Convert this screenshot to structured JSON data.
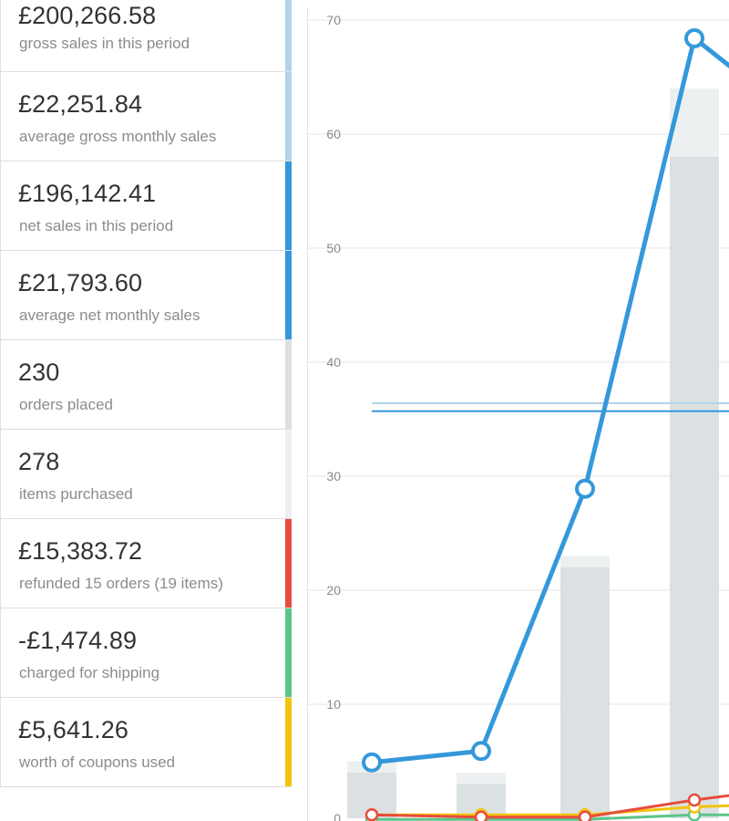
{
  "legend": {
    "items": [
      {
        "amount": "£200,266.58",
        "label": "gross sales in this period",
        "color": "#b1d4ea"
      },
      {
        "amount": "£22,251.84",
        "label": "average gross monthly sales",
        "color": "#b1d4ea"
      },
      {
        "amount": "£196,142.41",
        "label": "net sales in this period",
        "color": "#3498db"
      },
      {
        "amount": "£21,793.60",
        "label": "average net monthly sales",
        "color": "#3498db"
      },
      {
        "amount": "230",
        "label": "orders placed",
        "color": "#dbe1e3"
      },
      {
        "amount": "278",
        "label": "items purchased",
        "color": "#ecf0f1"
      },
      {
        "amount": "£15,383.72",
        "label": "refunded 15 orders (19 items)",
        "color": "#e74c3c"
      },
      {
        "amount": "-£1,474.89",
        "label": "charged for shipping",
        "color": "#5cc488"
      },
      {
        "amount": "£5,641.26",
        "label": "worth of coupons used",
        "color": "#f1c40f"
      }
    ]
  },
  "chart_data": {
    "type": "bar",
    "ylim": [
      0,
      70
    ],
    "yticks": [
      "0",
      "10",
      "20",
      "30",
      "40",
      "50",
      "60",
      "70"
    ],
    "x": [
      1,
      2,
      3,
      4,
      5
    ],
    "bars": {
      "items_purchased": [
        5,
        4,
        23,
        64,
        null
      ],
      "orders_placed": [
        4,
        3,
        22,
        58,
        null
      ]
    },
    "series": [
      {
        "name": "net sales",
        "color": "#3498db",
        "values": [
          4.9,
          5.9,
          28.9,
          68.4,
          61
        ]
      },
      {
        "name": "refunded",
        "color": "#e74c3c",
        "values": [
          0.3,
          0.1,
          0.1,
          1.6,
          2.8
        ]
      },
      {
        "name": "coupons",
        "color": "#f1c40f",
        "values": [
          0.3,
          0.3,
          0.3,
          1.0,
          1.3
        ]
      },
      {
        "name": "shipping",
        "color": "#5cc488",
        "values": [
          -0.1,
          -0.1,
          -0.1,
          0.3,
          0.3
        ]
      }
    ],
    "average_lines": [
      {
        "name": "average gross monthly sales",
        "color": "#b1d4ea",
        "value": 36.4
      },
      {
        "name": "average net monthly sales",
        "color": "#3498db",
        "value": 35.7
      }
    ],
    "grid": true
  }
}
